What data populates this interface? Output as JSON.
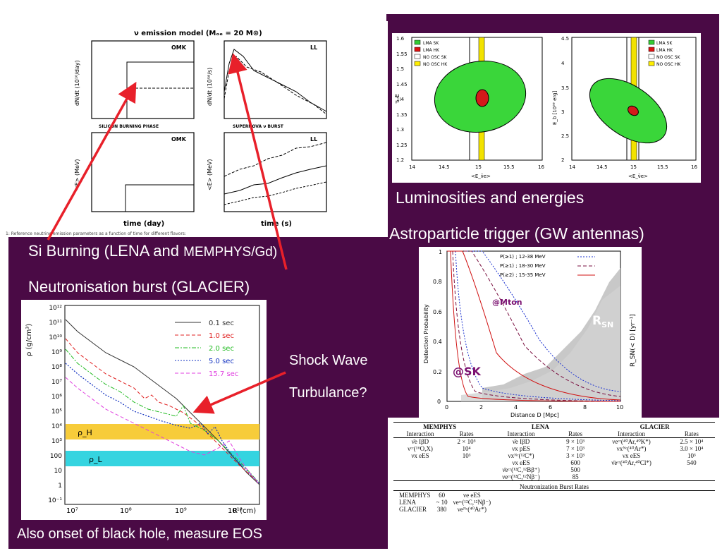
{
  "labels": {
    "luminosities": "Luminosities and energies",
    "astro_trigger": "Astroparticle trigger (GW antennas)",
    "si_burning_pre": "Si Burning (LENA and ",
    "si_burning_small": "MEMPHYS/Gd)",
    "neutronisation": "Neutronisation burst (GLACIER)",
    "shock_wave": "Shock  Wave",
    "turbulance": "Turbulance?",
    "black_hole": "Also onset of black hole,  measure EOS"
  },
  "emission_plot": {
    "title": "ν emission model (Mₒₑ = 20 M⊙)",
    "omk": "OMK",
    "ll": "LL",
    "silicon": "SILICON BURNING PHASE",
    "supernova": "SUPERNOVA ν BURST",
    "xlabel_left": "time (day)",
    "xlabel_right": "time (s)",
    "ylabel_top_left": "dN/dt (10¹⁰/day)",
    "ylabel_top_right": "dN/dt (10⁵⁸/s)",
    "ylabel_bottom": "<E> (MeV)",
    "caption": "1:  Reference neutrino emission parameters as a function of time for different flavors:"
  },
  "sk_plot": {
    "ylabel_left": "τ_E",
    "ylabel_right": "E_b [10⁵³ erg]",
    "xlabel": "<E_ν̄e>",
    "legend": [
      "LMA SK",
      "LMA HK",
      "NO OSC SK",
      "NO OSC HK"
    ],
    "legend_colors": [
      "#33cc33",
      "#dd1111",
      "#ffffff",
      "#ffee00"
    ],
    "x_ticks": [
      "14",
      "14.5",
      "15",
      "15.5",
      "16"
    ],
    "y_ticks_left": [
      "1.2",
      "1.25",
      "1.3",
      "1.35",
      "1.4",
      "1.45",
      "1.5",
      "1.55",
      "1.6"
    ],
    "y_ticks_right": [
      "2",
      "2.5",
      "3",
      "3.5",
      "4",
      "4.5"
    ]
  },
  "detection_plot": {
    "legend": [
      "P(≥1) ; 12-38 MeV",
      "P(≥1) ; 18-30 MeV",
      "P(≥2) ; 15-35 MeV"
    ],
    "xlabel": "Distance D [Mpc]",
    "ylabel": "Detection Probability",
    "ylabel_right": "R_SN(< D)  [yr⁻¹]",
    "mton": "@Mton",
    "sk": "@SK",
    "rsn": "R",
    "rsn_sub": "SN",
    "x_ticks": [
      "0",
      "2",
      "4",
      "6",
      "8",
      "10"
    ],
    "y_ticks": [
      "0",
      "0.2",
      "0.4",
      "0.6",
      "0.8",
      "1"
    ]
  },
  "density_plot": {
    "ylabel": "ρ (g/cm³)",
    "xlabel": "R (cm)",
    "legend": [
      "0.1 sec",
      "1.0 sec",
      "2.0 sec",
      "5.0 sec",
      "15.7 sec"
    ],
    "legend_colors": [
      "#333333",
      "#e02020",
      "#22bb22",
      "#1030c0",
      "#e040e0"
    ],
    "rho_h": "ρ_H",
    "rho_l": "ρ_L",
    "y_ticks": [
      "10¹²",
      "10¹¹",
      "10¹⁰",
      "10⁹",
      "10⁸",
      "10⁷",
      "10⁶",
      "10⁵",
      "10⁴",
      "10³",
      "100",
      "10",
      "1",
      "10⁻¹"
    ],
    "x_ticks": [
      "10⁷",
      "10⁸",
      "10⁹",
      "10¹⁰"
    ]
  },
  "rates_table": {
    "headers": [
      "MEMPHYS",
      "LENA",
      "GLACIER"
    ],
    "subheaders": [
      "Interaction",
      "Rates",
      "Interaction",
      "Rates",
      "Interaction",
      "Rates"
    ],
    "rows": [
      [
        "ν̄e IβD",
        "2 × 10⁵",
        "ν̄e IβD",
        "9 × 10³",
        "νeᶜᶜ(⁴⁰Ar,⁴⁰K*)",
        "2.5 × 10⁴"
      ],
      [
        "νᶜᶜ(¹⁶O,X)",
        "10⁴",
        "νx pES",
        "7 × 10³",
        "νxᴺᶜ(⁴⁰Ar*)",
        "3.0 × 10⁴"
      ],
      [
        "νx eES",
        "10³",
        "νxᴺᶜ(¹²C*)",
        "3 × 10³",
        "νx eES",
        "10³"
      ],
      [
        "",
        "",
        "νx eES",
        "600",
        "ν̄eᶜᶜ(⁴⁰Ar,⁴⁰Cl*)",
        "540"
      ],
      [
        "",
        "",
        "ν̄eᶜᶜ(¹²C,¹²Bβ⁺)",
        "500",
        "",
        ""
      ],
      [
        "",
        "",
        "νeᶜᶜ(¹²C,¹²Nβ⁻)",
        "85",
        "",
        ""
      ]
    ],
    "burst_title": "Neutronization Burst Rates",
    "burst_rows": [
      [
        "MEMPHYS",
        "60",
        "νe eES"
      ],
      [
        "LENA",
        "~ 10",
        "νeᶜᶜ(¹²C,¹²Nβ⁻)"
      ],
      [
        "GLACIER",
        "380",
        "νeᴺᶜ(⁴⁰Ar*)"
      ]
    ]
  }
}
